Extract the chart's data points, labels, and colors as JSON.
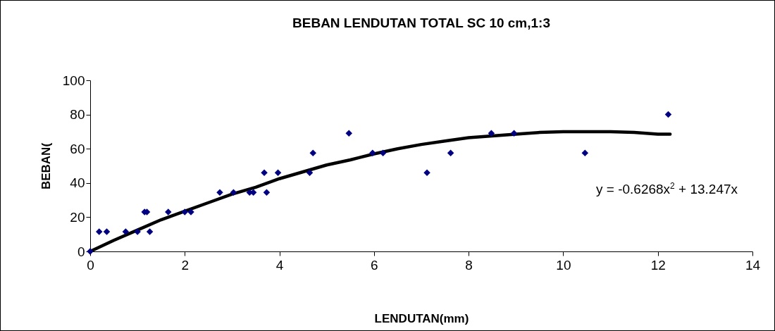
{
  "chart_data": {
    "type": "scatter",
    "title": "BEBAN LENDUTAN TOTAL SC 10 cm,1:3",
    "xlabel": "LENDUTAN(mm)",
    "ylabel": "BEBAN(",
    "xlim": [
      0,
      14
    ],
    "xticks": [
      0,
      2,
      4,
      6,
      8,
      10,
      12,
      14
    ],
    "ylim": [
      0,
      100
    ],
    "yticks": [
      0,
      20,
      40,
      60,
      80,
      100
    ],
    "grid": false,
    "marker": "diamond",
    "annotations": [
      "y = -0.6268x$^{2}$ + 13.247x"
    ],
    "series": [
      {
        "color": "#000080",
        "x": [
          0,
          0.19,
          0.35,
          0.75,
          1.0,
          1.15,
          1.2,
          1.26,
          1.65,
          2.0,
          2.13,
          2.74,
          3.03,
          3.37,
          3.45,
          3.68,
          3.73,
          3.97,
          4.64,
          4.71,
          5.47,
          5.97,
          6.19,
          7.12,
          7.62,
          8.48,
          8.96,
          10.46,
          12.22
        ],
        "values": [
          0,
          11.5,
          11.5,
          11.5,
          11.5,
          23,
          23,
          11.5,
          23,
          23,
          23,
          34.5,
          34.5,
          34.5,
          34.5,
          46,
          34.5,
          46,
          46,
          57.5,
          69,
          57.5,
          57.5,
          46,
          57.5,
          69,
          69,
          57.5,
          80
        ]
      },
      {
        "type": "line",
        "color": "#000000",
        "marker": "none",
        "line_style": "solid",
        "x": [
          0,
          0.5,
          1,
          1.5,
          2,
          2.5,
          3,
          3.5,
          4,
          4.5,
          5,
          5.5,
          6,
          6.5,
          7,
          7.5,
          8,
          8.5,
          9,
          9.5,
          10,
          10.5,
          11,
          11.5,
          12,
          12.26
        ],
        "values": [
          0,
          6.5,
          12.5,
          18.5,
          23.5,
          28.5,
          33.5,
          37.5,
          42.5,
          46.5,
          50.5,
          53.5,
          57,
          60,
          62.5,
          64.5,
          66.5,
          67.5,
          68.5,
          69.5,
          70,
          70,
          70,
          69.5,
          68.5,
          68.5
        ]
      }
    ]
  }
}
